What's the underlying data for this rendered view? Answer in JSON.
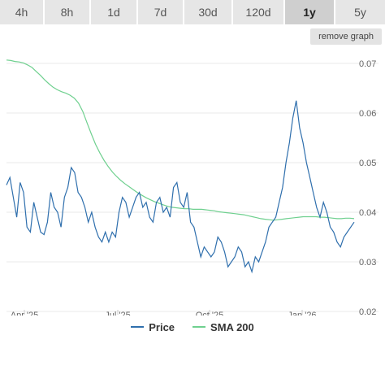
{
  "tabs": [
    {
      "label": "4h",
      "active": false
    },
    {
      "label": "8h",
      "active": false
    },
    {
      "label": "1d",
      "active": false
    },
    {
      "label": "7d",
      "active": false
    },
    {
      "label": "30d",
      "active": false
    },
    {
      "label": "120d",
      "active": false
    },
    {
      "label": "1y",
      "active": true
    },
    {
      "label": "5y",
      "active": false
    }
  ],
  "remove_graph_label": "remove graph",
  "colors": {
    "price": "#2f6fad",
    "sma": "#6fd08f",
    "grid": "#e8e8e8"
  },
  "chart_data": {
    "type": "line",
    "x_tick_labels": [
      "Apr '25",
      "Jul '25",
      "Oct '25",
      "Jan '26"
    ],
    "y_tick_labels": [
      "0.02",
      "0.03",
      "0.04",
      "0.05",
      "0.06",
      "0.07"
    ],
    "y_ticks": [
      0.02,
      0.03,
      0.04,
      0.05,
      0.06,
      0.07
    ],
    "ylim": [
      0.02,
      0.0723
    ],
    "grid": true,
    "legend_position": "bottom-center",
    "series": [
      {
        "name": "Price",
        "values": [
          0.0455,
          0.047,
          0.043,
          0.039,
          0.046,
          0.044,
          0.037,
          0.036,
          0.042,
          0.039,
          0.036,
          0.0355,
          0.038,
          0.044,
          0.041,
          0.04,
          0.037,
          0.043,
          0.045,
          0.049,
          0.048,
          0.044,
          0.043,
          0.041,
          0.038,
          0.04,
          0.037,
          0.035,
          0.034,
          0.036,
          0.034,
          0.036,
          0.035,
          0.04,
          0.043,
          0.042,
          0.039,
          0.041,
          0.043,
          0.044,
          0.041,
          0.042,
          0.039,
          0.038,
          0.042,
          0.043,
          0.04,
          0.041,
          0.039,
          0.045,
          0.046,
          0.042,
          0.041,
          0.044,
          0.038,
          0.037,
          0.034,
          0.031,
          0.033,
          0.032,
          0.031,
          0.032,
          0.035,
          0.034,
          0.032,
          0.029,
          0.03,
          0.031,
          0.033,
          0.032,
          0.029,
          0.03,
          0.028,
          0.031,
          0.03,
          0.032,
          0.034,
          0.037,
          0.038,
          0.039,
          0.042,
          0.045,
          0.05,
          0.054,
          0.059,
          0.0625,
          0.057,
          0.054,
          0.05,
          0.047,
          0.044,
          0.041,
          0.039,
          0.042,
          0.04,
          0.037,
          0.036,
          0.034,
          0.033,
          0.035,
          0.036,
          0.037,
          0.038
        ]
      },
      {
        "name": "SMA 200",
        "values": [
          0.0707,
          0.0706,
          0.0704,
          0.0703,
          0.0701,
          0.0697,
          0.0692,
          0.0684,
          0.0676,
          0.0667,
          0.0659,
          0.0652,
          0.0647,
          0.0643,
          0.064,
          0.0636,
          0.063,
          0.062,
          0.0603,
          0.058,
          0.0558,
          0.0537,
          0.052,
          0.0505,
          0.0492,
          0.0481,
          0.0472,
          0.0464,
          0.0457,
          0.0451,
          0.0445,
          0.0439,
          0.0434,
          0.0429,
          0.0425,
          0.0421,
          0.0418,
          0.0415,
          0.0412,
          0.041,
          0.0409,
          0.0408,
          0.0407,
          0.0407,
          0.0406,
          0.0406,
          0.0406,
          0.0405,
          0.0404,
          0.0403,
          0.0401,
          0.04,
          0.0399,
          0.0398,
          0.0397,
          0.0396,
          0.0395,
          0.0393,
          0.0391,
          0.0389,
          0.0387,
          0.0386,
          0.0385,
          0.0384,
          0.0385,
          0.0386,
          0.0387,
          0.0388,
          0.0389,
          0.039,
          0.0391,
          0.0391,
          0.0391,
          0.0391,
          0.039,
          0.039,
          0.0389,
          0.0388,
          0.0387,
          0.0387,
          0.0388,
          0.0388,
          0.0387
        ]
      }
    ]
  },
  "legend": [
    {
      "label": "Price"
    },
    {
      "label": "SMA 200"
    }
  ]
}
